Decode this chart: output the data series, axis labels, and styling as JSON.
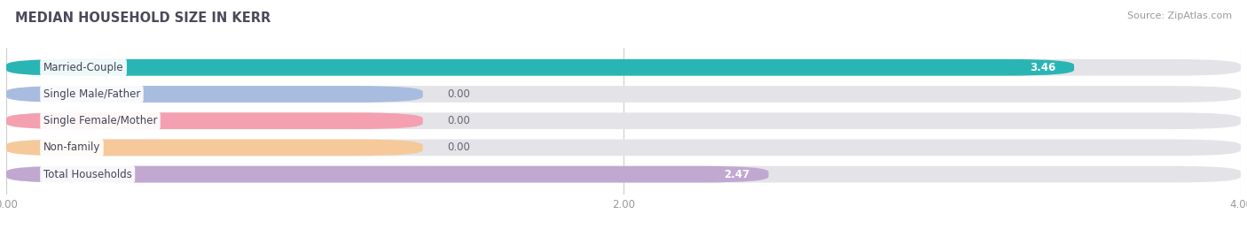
{
  "title": "MEDIAN HOUSEHOLD SIZE IN KERR",
  "source": "Source: ZipAtlas.com",
  "categories": [
    "Married-Couple",
    "Single Male/Father",
    "Single Female/Mother",
    "Non-family",
    "Total Households"
  ],
  "values": [
    3.46,
    0.0,
    0.0,
    0.0,
    2.47
  ],
  "bar_colors": [
    "#2ab5b5",
    "#a8bce0",
    "#f4a0b0",
    "#f5c99a",
    "#c0a8d0"
  ],
  "bar_bg_color": "#e4e4e8",
  "zero_bar_width": 1.35,
  "xlim": [
    0,
    4.0
  ],
  "xticks": [
    0.0,
    2.0,
    4.0
  ],
  "xtick_labels": [
    "0.00",
    "2.00",
    "4.00"
  ],
  "title_color": "#4a4a5a",
  "background_color": "#ffffff",
  "bar_height": 0.62,
  "bar_spacing": 1.0
}
